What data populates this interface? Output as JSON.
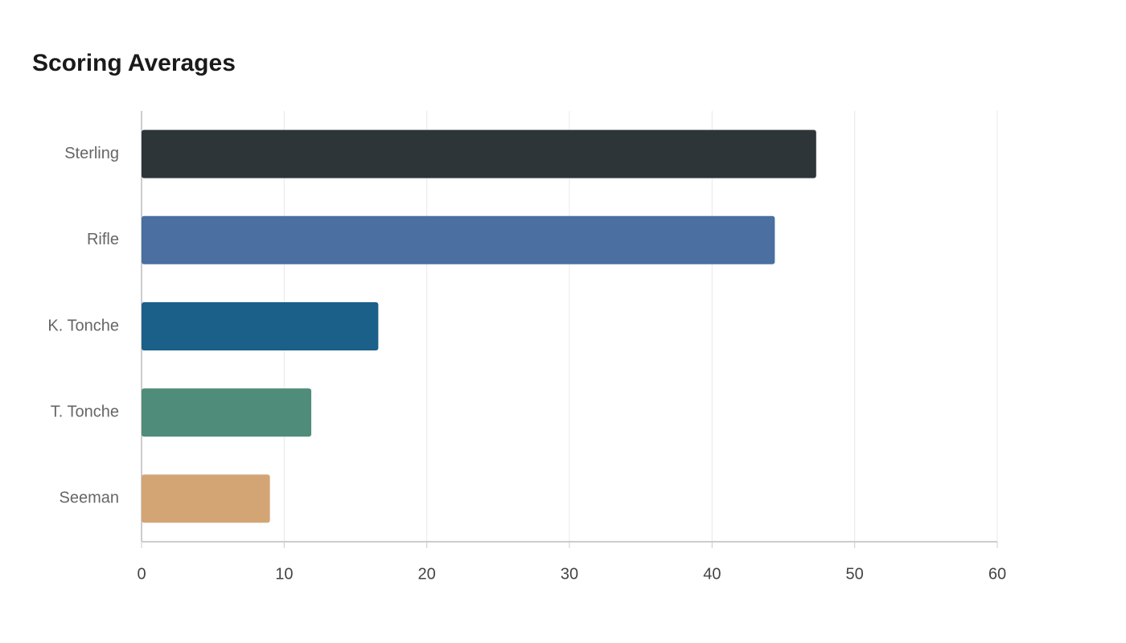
{
  "chart_data": {
    "type": "bar",
    "orientation": "horizontal",
    "title": "Scoring Averages",
    "categories": [
      "Sterling",
      "Rifle",
      "K. Tonche",
      "T. Tonche",
      "Seeman"
    ],
    "values": [
      47.3,
      44.4,
      16.6,
      11.9,
      9.0
    ],
    "colors": [
      "#2e3538",
      "#4a6fa0",
      "#1a6088",
      "#4f8c7a",
      "#d3a574"
    ],
    "xlim": [
      0,
      60
    ],
    "xticks": [
      0,
      10,
      20,
      30,
      40,
      50,
      60
    ],
    "grid": true
  }
}
